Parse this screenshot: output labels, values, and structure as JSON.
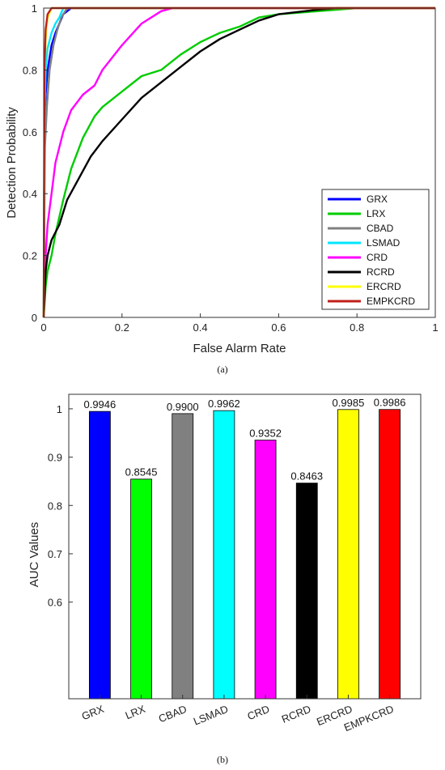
{
  "chart_data": [
    {
      "type": "line",
      "xlabel": "False Alarm Rate",
      "ylabel": "Detection Probability",
      "caption": "(a)",
      "xlim": [
        0,
        1
      ],
      "ylim": [
        0,
        1
      ],
      "x_ticks": [
        "0",
        "0.2",
        "0.4",
        "0.6",
        "0.8",
        "1"
      ],
      "y_ticks": [
        "0",
        "0.2",
        "0.4",
        "0.6",
        "0.8",
        "1"
      ],
      "grid": false,
      "legend_position": "lower-right",
      "series": [
        {
          "name": "GRX",
          "color": "#0000ff",
          "x": [
            0,
            0.002,
            0.005,
            0.01,
            0.02,
            0.03,
            0.04,
            0.05,
            0.07,
            1
          ],
          "y": [
            0,
            0.6,
            0.72,
            0.8,
            0.88,
            0.92,
            0.95,
            0.98,
            1,
            1
          ]
        },
        {
          "name": "LRX",
          "color": "#00cc00",
          "x": [
            0,
            0.005,
            0.01,
            0.02,
            0.03,
            0.05,
            0.07,
            0.1,
            0.13,
            0.15,
            0.2,
            0.25,
            0.3,
            0.35,
            0.4,
            0.45,
            0.5,
            0.55,
            0.6,
            0.7,
            0.8,
            1
          ],
          "y": [
            0,
            0.1,
            0.15,
            0.2,
            0.27,
            0.38,
            0.48,
            0.58,
            0.65,
            0.68,
            0.73,
            0.78,
            0.8,
            0.85,
            0.89,
            0.92,
            0.94,
            0.97,
            0.98,
            0.99,
            1,
            1
          ]
        },
        {
          "name": "CBAD",
          "color": "#808080",
          "x": [
            0,
            0.003,
            0.008,
            0.015,
            0.025,
            0.035,
            0.045,
            0.06,
            1
          ],
          "y": [
            0,
            0.55,
            0.68,
            0.8,
            0.88,
            0.93,
            0.97,
            1,
            1
          ]
        },
        {
          "name": "LSMAD",
          "color": "#00e5ff",
          "x": [
            0,
            0.002,
            0.005,
            0.01,
            0.02,
            0.03,
            0.04,
            0.05,
            1
          ],
          "y": [
            0,
            0.65,
            0.8,
            0.87,
            0.92,
            0.95,
            0.97,
            1,
            1
          ]
        },
        {
          "name": "CRD",
          "color": "#ff00ff",
          "x": [
            0,
            0.005,
            0.01,
            0.02,
            0.03,
            0.05,
            0.07,
            0.1,
            0.13,
            0.15,
            0.2,
            0.25,
            0.3,
            0.33,
            1
          ],
          "y": [
            0,
            0.2,
            0.3,
            0.4,
            0.5,
            0.6,
            0.67,
            0.72,
            0.75,
            0.8,
            0.88,
            0.95,
            0.99,
            1,
            1
          ]
        },
        {
          "name": "RCRD",
          "color": "#000000",
          "x": [
            0,
            0.005,
            0.01,
            0.02,
            0.04,
            0.06,
            0.09,
            0.12,
            0.15,
            0.2,
            0.25,
            0.3,
            0.35,
            0.4,
            0.45,
            0.5,
            0.55,
            0.6,
            0.7,
            0.75,
            1
          ],
          "y": [
            0,
            0.15,
            0.2,
            0.25,
            0.3,
            0.38,
            0.45,
            0.52,
            0.57,
            0.64,
            0.71,
            0.76,
            0.81,
            0.86,
            0.9,
            0.93,
            0.96,
            0.98,
            0.995,
            1,
            1
          ]
        },
        {
          "name": "ERCRD",
          "color": "#ffff00",
          "x": [
            0,
            0.002,
            0.005,
            0.01,
            0.02,
            1
          ],
          "y": [
            0,
            0.75,
            0.9,
            0.97,
            1,
            1
          ]
        },
        {
          "name": "EMPKCRD",
          "color": "#c0201a",
          "x": [
            0,
            0.002,
            0.005,
            0.01,
            0.02,
            1
          ],
          "y": [
            0,
            0.8,
            0.93,
            0.98,
            1,
            1
          ]
        }
      ]
    },
    {
      "type": "bar",
      "ylabel": "AUC Values",
      "caption": "(b)",
      "ylim": [
        0.4,
        1.03
      ],
      "y_ticks": [
        "0.6",
        "0.7",
        "0.8",
        "0.9",
        "1"
      ],
      "categories": [
        "GRX",
        "LRX",
        "CBAD",
        "LSMAD",
        "CRD",
        "RCRD",
        "ERCRD",
        "EMPKCRD"
      ],
      "values": [
        0.9946,
        0.8545,
        0.99,
        0.9962,
        0.9352,
        0.8463,
        0.9985,
        0.9986
      ],
      "value_labels": [
        "0.9946",
        "0.8545",
        "0.9900",
        "0.9962",
        "0.9352",
        "0.8463",
        "0.9985",
        "0.9986"
      ],
      "colors": [
        "#0000ff",
        "#00ff00",
        "#808080",
        "#00ffff",
        "#ff00ff",
        "#000000",
        "#ffff00",
        "#ff0000"
      ]
    }
  ]
}
